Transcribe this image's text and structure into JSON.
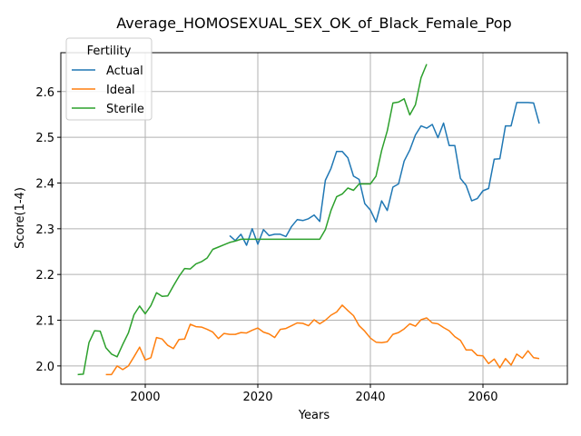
{
  "chart_data": {
    "type": "line",
    "title": "Average_HOMOSEXUAL_SEX_OK_of_Black_Female_Pop",
    "xlabel": "Years",
    "ylabel": "Score(1-4)",
    "xlim": [
      1985,
      2075
    ],
    "ylim": [
      1.96,
      2.685
    ],
    "xticks": [
      2000,
      2020,
      2040,
      2060
    ],
    "yticks": [
      2.0,
      2.1,
      2.2,
      2.3,
      2.4,
      2.5,
      2.6
    ],
    "grid": true,
    "legend": {
      "title": "Fertility",
      "placement": "top-left"
    },
    "series": [
      {
        "name": "Actual",
        "color": "#1f77b4",
        "points": [
          [
            2015,
            2.285
          ],
          [
            2016,
            2.274
          ],
          [
            2017,
            2.288
          ],
          [
            2018,
            2.264
          ],
          [
            2019,
            2.3
          ],
          [
            2020,
            2.266
          ],
          [
            2021,
            2.298
          ],
          [
            2022,
            2.285
          ],
          [
            2023,
            2.288
          ],
          [
            2024,
            2.288
          ],
          [
            2025,
            2.283
          ],
          [
            2026,
            2.305
          ],
          [
            2027,
            2.32
          ],
          [
            2028,
            2.318
          ],
          [
            2029,
            2.322
          ],
          [
            2030,
            2.33
          ],
          [
            2031,
            2.316
          ],
          [
            2032,
            2.406
          ],
          [
            2033,
            2.432
          ],
          [
            2034,
            2.469
          ],
          [
            2035,
            2.469
          ],
          [
            2036,
            2.455
          ],
          [
            2037,
            2.415
          ],
          [
            2038,
            2.408
          ],
          [
            2039,
            2.355
          ],
          [
            2040,
            2.341
          ],
          [
            2041,
            2.315
          ],
          [
            2042,
            2.361
          ],
          [
            2043,
            2.34
          ],
          [
            2044,
            2.391
          ],
          [
            2045,
            2.398
          ],
          [
            2046,
            2.448
          ],
          [
            2047,
            2.472
          ],
          [
            2048,
            2.505
          ],
          [
            2049,
            2.525
          ],
          [
            2050,
            2.52
          ],
          [
            2051,
            2.528
          ],
          [
            2052,
            2.499
          ],
          [
            2053,
            2.531
          ],
          [
            2054,
            2.482
          ],
          [
            2055,
            2.482
          ],
          [
            2056,
            2.41
          ],
          [
            2057,
            2.395
          ],
          [
            2058,
            2.361
          ],
          [
            2059,
            2.366
          ],
          [
            2060,
            2.383
          ],
          [
            2061,
            2.388
          ],
          [
            2062,
            2.452
          ],
          [
            2063,
            2.453
          ],
          [
            2064,
            2.525
          ],
          [
            2065,
            2.525
          ],
          [
            2066,
            2.576
          ],
          [
            2067,
            2.576
          ],
          [
            2068,
            2.576
          ],
          [
            2069,
            2.575
          ],
          [
            2070,
            2.53
          ]
        ]
      },
      {
        "name": "Ideal",
        "color": "#ff7f0e",
        "points": [
          [
            1993,
            1.981
          ],
          [
            1994,
            1.981
          ],
          [
            1995,
            2.0
          ],
          [
            1996,
            1.992
          ],
          [
            1997,
            2.0
          ],
          [
            1998,
            2.02
          ],
          [
            1999,
            2.041
          ],
          [
            2000,
            2.013
          ],
          [
            2001,
            2.018
          ],
          [
            2002,
            2.062
          ],
          [
            2003,
            2.059
          ],
          [
            2004,
            2.045
          ],
          [
            2005,
            2.038
          ],
          [
            2006,
            2.058
          ],
          [
            2007,
            2.059
          ],
          [
            2008,
            2.091
          ],
          [
            2009,
            2.086
          ],
          [
            2010,
            2.085
          ],
          [
            2011,
            2.08
          ],
          [
            2012,
            2.074
          ],
          [
            2013,
            2.06
          ],
          [
            2014,
            2.071
          ],
          [
            2015,
            2.069
          ],
          [
            2016,
            2.069
          ],
          [
            2017,
            2.073
          ],
          [
            2018,
            2.072
          ],
          [
            2019,
            2.078
          ],
          [
            2020,
            2.083
          ],
          [
            2021,
            2.074
          ],
          [
            2022,
            2.07
          ],
          [
            2023,
            2.062
          ],
          [
            2024,
            2.08
          ],
          [
            2025,
            2.082
          ],
          [
            2026,
            2.088
          ],
          [
            2027,
            2.094
          ],
          [
            2028,
            2.093
          ],
          [
            2029,
            2.088
          ],
          [
            2030,
            2.101
          ],
          [
            2031,
            2.092
          ],
          [
            2032,
            2.1
          ],
          [
            2033,
            2.111
          ],
          [
            2034,
            2.118
          ],
          [
            2035,
            2.133
          ],
          [
            2036,
            2.121
          ],
          [
            2037,
            2.11
          ],
          [
            2038,
            2.088
          ],
          [
            2039,
            2.076
          ],
          [
            2040,
            2.061
          ],
          [
            2041,
            2.052
          ],
          [
            2042,
            2.051
          ],
          [
            2043,
            2.053
          ],
          [
            2044,
            2.069
          ],
          [
            2045,
            2.073
          ],
          [
            2046,
            2.081
          ],
          [
            2047,
            2.092
          ],
          [
            2048,
            2.087
          ],
          [
            2049,
            2.101
          ],
          [
            2050,
            2.105
          ],
          [
            2051,
            2.094
          ],
          [
            2052,
            2.092
          ],
          [
            2053,
            2.084
          ],
          [
            2054,
            2.077
          ],
          [
            2055,
            2.064
          ],
          [
            2056,
            2.056
          ],
          [
            2057,
            2.035
          ],
          [
            2058,
            2.035
          ],
          [
            2059,
            2.023
          ],
          [
            2060,
            2.022
          ],
          [
            2061,
            2.005
          ],
          [
            2062,
            2.015
          ],
          [
            2063,
            1.996
          ],
          [
            2064,
            2.016
          ],
          [
            2065,
            2.002
          ],
          [
            2066,
            2.026
          ],
          [
            2067,
            2.017
          ],
          [
            2068,
            2.033
          ],
          [
            2069,
            2.018
          ],
          [
            2070,
            2.016
          ]
        ]
      },
      {
        "name": "Sterile",
        "color": "#2ca02c",
        "points": [
          [
            1988,
            1.981
          ],
          [
            1989,
            1.982
          ],
          [
            1990,
            2.051
          ],
          [
            1991,
            2.077
          ],
          [
            1992,
            2.076
          ],
          [
            1993,
            2.04
          ],
          [
            1994,
            2.026
          ],
          [
            1995,
            2.02
          ],
          [
            1996,
            2.047
          ],
          [
            1997,
            2.072
          ],
          [
            1998,
            2.112
          ],
          [
            1999,
            2.131
          ],
          [
            2000,
            2.114
          ],
          [
            2001,
            2.132
          ],
          [
            2002,
            2.16
          ],
          [
            2003,
            2.152
          ],
          [
            2004,
            2.153
          ],
          [
            2005,
            2.175
          ],
          [
            2006,
            2.196
          ],
          [
            2007,
            2.213
          ],
          [
            2008,
            2.212
          ],
          [
            2009,
            2.223
          ],
          [
            2010,
            2.228
          ],
          [
            2011,
            2.236
          ],
          [
            2012,
            2.255
          ],
          [
            2013,
            2.26
          ],
          [
            2014,
            2.265
          ],
          [
            2015,
            2.27
          ],
          [
            2016,
            2.273
          ],
          [
            2017,
            2.277
          ],
          [
            2018,
            2.277
          ],
          [
            2019,
            2.277
          ],
          [
            2020,
            2.277
          ],
          [
            2021,
            2.277
          ],
          [
            2022,
            2.277
          ],
          [
            2023,
            2.277
          ],
          [
            2024,
            2.277
          ],
          [
            2025,
            2.277
          ],
          [
            2026,
            2.277
          ],
          [
            2027,
            2.277
          ],
          [
            2028,
            2.277
          ],
          [
            2029,
            2.277
          ],
          [
            2030,
            2.277
          ],
          [
            2031,
            2.277
          ],
          [
            2032,
            2.298
          ],
          [
            2033,
            2.34
          ],
          [
            2034,
            2.37
          ],
          [
            2035,
            2.376
          ],
          [
            2036,
            2.389
          ],
          [
            2037,
            2.384
          ],
          [
            2038,
            2.398
          ],
          [
            2039,
            2.398
          ],
          [
            2040,
            2.398
          ],
          [
            2041,
            2.415
          ],
          [
            2042,
            2.471
          ],
          [
            2043,
            2.514
          ],
          [
            2044,
            2.575
          ],
          [
            2045,
            2.577
          ],
          [
            2046,
            2.584
          ],
          [
            2047,
            2.549
          ],
          [
            2048,
            2.571
          ],
          [
            2049,
            2.63
          ],
          [
            2050,
            2.66
          ]
        ]
      }
    ]
  }
}
